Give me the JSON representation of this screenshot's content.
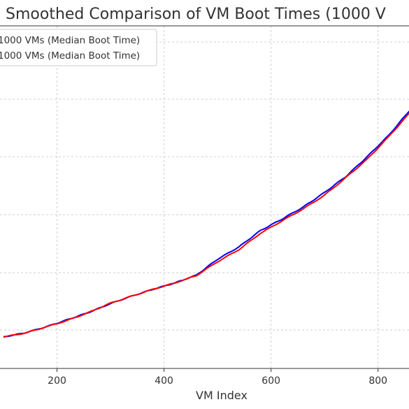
{
  "chart_data": {
    "type": "line",
    "title": "Smoothed Comparison of VM Boot Times (1000 V",
    "xlabel": "VM Index",
    "ylabel": "",
    "xlim": [
      0,
      1000
    ],
    "ylim": [
      0,
      1000
    ],
    "grid": true,
    "legend_position": "top-left",
    "x_ticks": [
      200,
      400,
      600,
      800
    ],
    "x_tick_labels": [
      "200",
      "400",
      "600",
      "800"
    ],
    "series": [
      {
        "name": "1000 VMs (Median Boot Time)",
        "color": "#0000ff",
        "x": [
          100,
          140,
          180,
          220,
          260,
          300,
          340,
          380,
          420,
          460,
          500,
          540,
          580,
          620,
          660,
          700,
          740,
          780,
          820,
          860
        ],
        "y": [
          57,
          75,
          102,
          133,
          165,
          203,
          236,
          266,
          293,
          327,
          397,
          451,
          522,
          572,
          625,
          689,
          759,
          846,
          939,
          1050
        ]
      },
      {
        "name": "1000 VMs (Median Boot Time)",
        "color": "#ff0000",
        "x": [
          100,
          140,
          180,
          220,
          260,
          300,
          340,
          380,
          420,
          460,
          500,
          540,
          580,
          620,
          660,
          700,
          740,
          780,
          820,
          860
        ],
        "y": [
          57,
          74,
          101,
          130,
          165,
          205,
          236,
          266,
          293,
          325,
          386,
          439,
          510,
          564,
          617,
          677,
          754,
          835,
          933,
          1039
        ]
      }
    ],
    "legend": [
      {
        "label": "1000 VMs (Median Boot Time)",
        "color": "#0000ff"
      },
      {
        "label": "1000 VMs (Median Boot Time)",
        "color": "#ff0000"
      }
    ]
  }
}
